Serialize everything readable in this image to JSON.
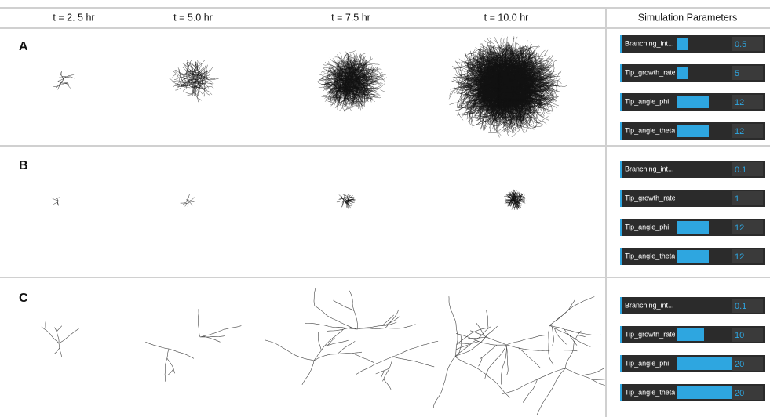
{
  "header": {
    "columns": [
      "t = 2. 5 hr",
      "t = 5.0 hr",
      "t = 7.5 hr",
      "t = 10.0 hr"
    ],
    "panel_title": "Simulation Parameters"
  },
  "rows": [
    {
      "label": "A",
      "parameters": [
        {
          "name": "Branching_int...",
          "value": 0.5
        },
        {
          "name": "Tip_growth_rate",
          "value": 5
        },
        {
          "name": "Tip_angle_phi",
          "value": 12
        },
        {
          "name": "Tip_angle_theta",
          "value": 12
        }
      ]
    },
    {
      "label": "B",
      "parameters": [
        {
          "name": "Branching_int...",
          "value": 0.1
        },
        {
          "name": "Tip_growth_rate",
          "value": 1
        },
        {
          "name": "Tip_angle_phi",
          "value": 12
        },
        {
          "name": "Tip_angle_theta",
          "value": 12
        }
      ]
    },
    {
      "label": "C",
      "parameters": [
        {
          "name": "Branching_int...",
          "value": 0.1
        },
        {
          "name": "Tip_growth_rate",
          "value": 10
        },
        {
          "name": "Tip_angle_phi",
          "value": 20
        },
        {
          "name": "Tip_angle_theta",
          "value": 20
        }
      ]
    }
  ]
}
